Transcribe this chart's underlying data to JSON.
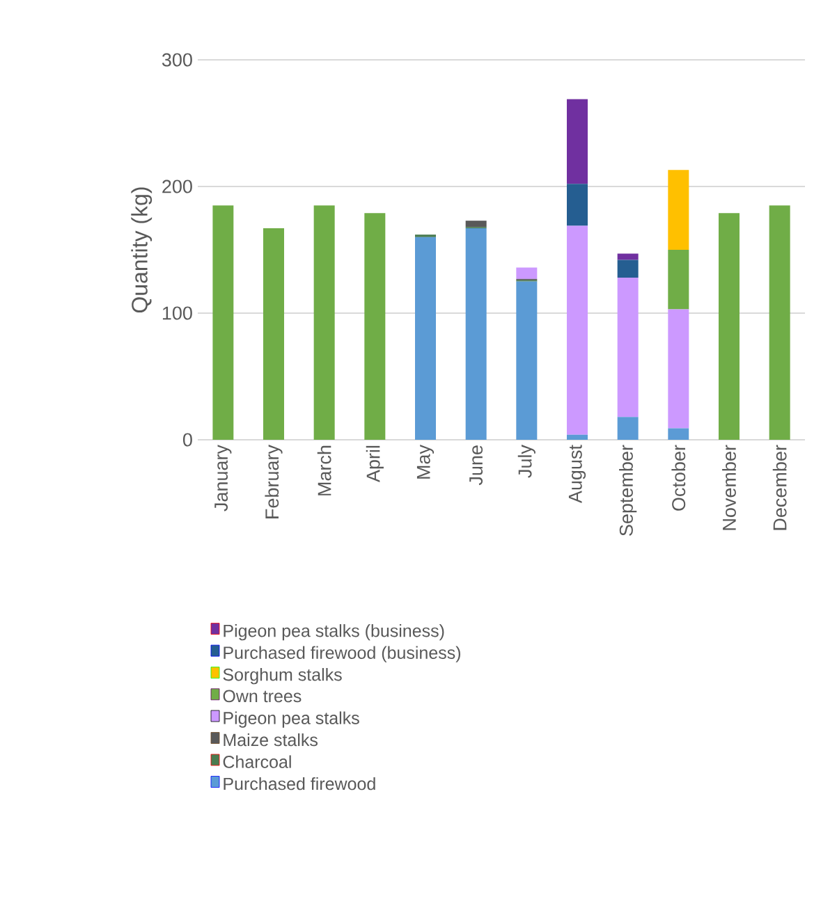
{
  "chart_data": {
    "type": "bar",
    "stacked": true,
    "ylabel": "Quantity (kg)",
    "categories": [
      "January",
      "February",
      "March",
      "April",
      "May",
      "June",
      "July",
      "August",
      "September",
      "October",
      "November",
      "December"
    ],
    "ylim": [
      0,
      300
    ],
    "yticks": [
      0,
      100,
      200,
      300
    ],
    "grid": "y",
    "legend": "bottom",
    "series": [
      {
        "name": "Purchased firewood",
        "color": "#5b9bd5",
        "values": [
          0,
          0,
          0,
          0,
          160,
          167,
          125,
          4,
          18,
          9,
          0,
          0
        ]
      },
      {
        "name": "Charcoal",
        "color": "#4a7c50",
        "values": [
          0,
          0,
          0,
          0,
          2,
          1,
          1,
          0,
          0,
          0,
          0,
          0
        ]
      },
      {
        "name": "Maize stalks",
        "color": "#595959",
        "values": [
          0,
          0,
          0,
          0,
          0,
          5,
          1,
          0,
          0,
          0,
          0,
          0
        ]
      },
      {
        "name": "Pigeon pea stalks",
        "color": "#cc99ff",
        "values": [
          0,
          0,
          0,
          0,
          0,
          0,
          9,
          165,
          110,
          94,
          0,
          0
        ]
      },
      {
        "name": "Own trees",
        "color": "#70ad47",
        "values": [
          185,
          167,
          185,
          179,
          0,
          0,
          0,
          0,
          0,
          47,
          179,
          185
        ]
      },
      {
        "name": "Sorghum stalks",
        "color": "#ffc000",
        "values": [
          0,
          0,
          0,
          0,
          0,
          0,
          0,
          0,
          0,
          63,
          0,
          0
        ]
      },
      {
        "name": "Purchased firewood (business)",
        "color": "#255e91",
        "values": [
          0,
          0,
          0,
          0,
          0,
          0,
          0,
          33,
          14,
          0,
          0,
          0
        ]
      },
      {
        "name": "Pigeon pea stalks (business)",
        "color": "#7030a0",
        "values": [
          0,
          0,
          0,
          0,
          0,
          0,
          0,
          67,
          5,
          0,
          0,
          0
        ]
      }
    ]
  }
}
